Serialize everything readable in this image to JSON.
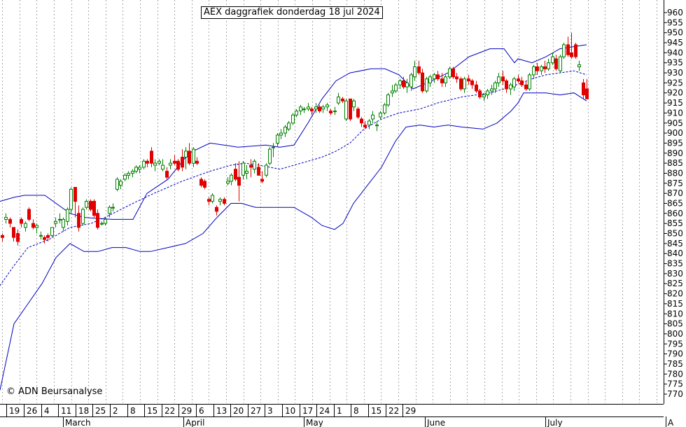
{
  "title": "AEX daggrafiek donderdag 18 jul 2024",
  "copyright": "© ADN Beursanalyse",
  "chart_data": {
    "type": "candlestick",
    "title": "AEX daggrafiek donderdag 18 jul 2024",
    "ylim": [
      765,
      963
    ],
    "yticks": [
      770,
      775,
      780,
      785,
      790,
      795,
      800,
      805,
      810,
      815,
      820,
      825,
      830,
      835,
      840,
      845,
      850,
      855,
      860,
      865,
      870,
      875,
      880,
      885,
      890,
      895,
      900,
      905,
      910,
      915,
      920,
      925,
      930,
      935,
      940,
      945,
      950,
      955,
      960
    ],
    "ytick_step": 5,
    "grid": "vertical dotted",
    "up_color": "#008000",
    "down_color": "#e00000",
    "band_color": "#0000c0",
    "x_day_labels": [
      "19",
      "26",
      "4",
      "11",
      "18",
      "25",
      "2",
      "8",
      "15",
      "22",
      "29",
      "6",
      "13",
      "20",
      "27",
      "3",
      "10",
      "17",
      "24",
      "1",
      "8",
      "15",
      "22",
      "29"
    ],
    "x_month_labels": [
      "March",
      "April",
      "May",
      "June",
      "July",
      "A"
    ],
    "month_label_slots": [
      3,
      38,
      73,
      108,
      143,
      178
    ],
    "candles": [
      {
        "o": 849,
        "h": 850,
        "l": 846,
        "c": 848
      },
      {
        "o": 857,
        "h": 860,
        "l": 855,
        "c": 858
      },
      {
        "o": 857,
        "h": 858,
        "l": 853,
        "c": 855
      },
      {
        "o": 853,
        "h": 853,
        "l": 846,
        "c": 848
      },
      {
        "o": 850,
        "h": 852,
        "l": 844,
        "c": 846
      },
      {
        "o": 857,
        "h": 858,
        "l": 853,
        "c": 855
      },
      {
        "o": 853,
        "h": 856,
        "l": 851,
        "c": 855
      },
      {
        "o": 862,
        "h": 863,
        "l": 856,
        "c": 857
      },
      {
        "o": 855,
        "h": 857,
        "l": 852,
        "c": 853
      },
      {
        "o": 853,
        "h": 855,
        "l": 850,
        "c": 854
      },
      {
        "o": 849,
        "h": 851,
        "l": 847,
        "c": 849
      },
      {
        "o": 848,
        "h": 849,
        "l": 845,
        "c": 847
      },
      {
        "o": 849,
        "h": 850,
        "l": 846,
        "c": 848
      },
      {
        "o": 849,
        "h": 853,
        "l": 848,
        "c": 853
      },
      {
        "o": 855,
        "h": 858,
        "l": 853,
        "c": 856
      },
      {
        "o": 857,
        "h": 860,
        "l": 855,
        "c": 857
      },
      {
        "o": 853,
        "h": 858,
        "l": 851,
        "c": 857
      },
      {
        "o": 856,
        "h": 863,
        "l": 854,
        "c": 862
      },
      {
        "o": 862,
        "h": 873,
        "l": 860,
        "c": 872
      },
      {
        "o": 873,
        "h": 873,
        "l": 858,
        "c": 866
      },
      {
        "o": 860,
        "h": 864,
        "l": 851,
        "c": 853
      },
      {
        "o": 855,
        "h": 863,
        "l": 854,
        "c": 862
      },
      {
        "o": 863,
        "h": 867,
        "l": 862,
        "c": 866
      },
      {
        "o": 866,
        "h": 867,
        "l": 861,
        "c": 862
      },
      {
        "o": 866,
        "h": 867,
        "l": 858,
        "c": 859
      },
      {
        "o": 860,
        "h": 862,
        "l": 852,
        "c": 853
      },
      {
        "o": 855,
        "h": 856,
        "l": 854,
        "c": 855
      },
      {
        "o": 855,
        "h": 858,
        "l": 854,
        "c": 857
      },
      {
        "o": 860,
        "h": 864,
        "l": 858,
        "c": 863
      },
      {
        "o": 863,
        "h": 865,
        "l": 861,
        "c": 863
      },
      {
        "o": 872,
        "h": 878,
        "l": 871,
        "c": 877
      },
      {
        "o": 874,
        "h": 877,
        "l": 872,
        "c": 876
      },
      {
        "o": 877,
        "h": 880,
        "l": 876,
        "c": 879
      },
      {
        "o": 879,
        "h": 881,
        "l": 877,
        "c": 880
      },
      {
        "o": 880,
        "h": 882,
        "l": 878,
        "c": 881
      },
      {
        "o": 881,
        "h": 884,
        "l": 880,
        "c": 883
      },
      {
        "o": 882,
        "h": 884,
        "l": 880,
        "c": 883
      },
      {
        "o": 883,
        "h": 887,
        "l": 882,
        "c": 886
      },
      {
        "o": 886,
        "h": 887,
        "l": 883,
        "c": 885
      },
      {
        "o": 891,
        "h": 893,
        "l": 883,
        "c": 885
      },
      {
        "o": 884,
        "h": 887,
        "l": 881,
        "c": 885
      },
      {
        "o": 885,
        "h": 887,
        "l": 884,
        "c": 886
      },
      {
        "o": 882,
        "h": 887,
        "l": 881,
        "c": 884
      },
      {
        "o": 881,
        "h": 883,
        "l": 877,
        "c": 878
      },
      {
        "o": 884,
        "h": 887,
        "l": 882,
        "c": 885
      },
      {
        "o": 886,
        "h": 889,
        "l": 884,
        "c": 885
      },
      {
        "o": 886,
        "h": 887,
        "l": 881,
        "c": 882
      },
      {
        "o": 888,
        "h": 892,
        "l": 881,
        "c": 883
      },
      {
        "o": 888,
        "h": 893,
        "l": 882,
        "c": 891
      },
      {
        "o": 891,
        "h": 895,
        "l": 884,
        "c": 885
      },
      {
        "o": 885,
        "h": 893,
        "l": 883,
        "c": 892
      },
      {
        "o": 886,
        "h": 888,
        "l": 884,
        "c": 885
      },
      {
        "o": 877,
        "h": 878,
        "l": 873,
        "c": 874
      },
      {
        "o": 876,
        "h": 877,
        "l": 872,
        "c": 873
      },
      {
        "o": 867,
        "h": 868,
        "l": 864,
        "c": 866
      },
      {
        "o": 866,
        "h": 870,
        "l": 865,
        "c": 869
      },
      {
        "o": 863,
        "h": 864,
        "l": 859,
        "c": 861
      },
      {
        "o": 866,
        "h": 868,
        "l": 864,
        "c": 867
      },
      {
        "o": 867,
        "h": 868,
        "l": 864,
        "c": 865
      },
      {
        "o": 875,
        "h": 878,
        "l": 874,
        "c": 876
      },
      {
        "o": 876,
        "h": 880,
        "l": 874,
        "c": 879
      },
      {
        "o": 882,
        "h": 885,
        "l": 876,
        "c": 877
      },
      {
        "o": 878,
        "h": 886,
        "l": 866,
        "c": 874
      },
      {
        "o": 879,
        "h": 886,
        "l": 877,
        "c": 885
      },
      {
        "o": 880,
        "h": 884,
        "l": 877,
        "c": 881
      },
      {
        "o": 884,
        "h": 887,
        "l": 878,
        "c": 883
      },
      {
        "o": 882,
        "h": 887,
        "l": 880,
        "c": 886
      },
      {
        "o": 883,
        "h": 885,
        "l": 879,
        "c": 879
      },
      {
        "o": 877,
        "h": 881,
        "l": 875,
        "c": 876
      },
      {
        "o": 879,
        "h": 885,
        "l": 878,
        "c": 884
      },
      {
        "o": 885,
        "h": 893,
        "l": 884,
        "c": 892
      },
      {
        "o": 893,
        "h": 895,
        "l": 888,
        "c": 893
      },
      {
        "o": 895,
        "h": 900,
        "l": 893,
        "c": 899
      },
      {
        "o": 899,
        "h": 902,
        "l": 897,
        "c": 900
      },
      {
        "o": 900,
        "h": 904,
        "l": 898,
        "c": 903
      },
      {
        "o": 902,
        "h": 906,
        "l": 901,
        "c": 905
      },
      {
        "o": 905,
        "h": 910,
        "l": 904,
        "c": 909
      },
      {
        "o": 909,
        "h": 912,
        "l": 908,
        "c": 911
      },
      {
        "o": 911,
        "h": 914,
        "l": 909,
        "c": 913
      },
      {
        "o": 912,
        "h": 913,
        "l": 910,
        "c": 912
      },
      {
        "o": 912,
        "h": 915,
        "l": 911,
        "c": 913
      },
      {
        "o": 912,
        "h": 913,
        "l": 909,
        "c": 911
      },
      {
        "o": 912,
        "h": 915,
        "l": 910,
        "c": 913
      },
      {
        "o": 913,
        "h": 914,
        "l": 910,
        "c": 911
      },
      {
        "o": 912,
        "h": 914,
        "l": 910,
        "c": 913
      },
      {
        "o": 913,
        "h": 915,
        "l": 911,
        "c": 914
      },
      {
        "o": 911,
        "h": 912,
        "l": 909,
        "c": 910
      },
      {
        "o": 911,
        "h": 913,
        "l": 909,
        "c": 911
      },
      {
        "o": 915,
        "h": 920,
        "l": 914,
        "c": 918
      },
      {
        "o": 917,
        "h": 918,
        "l": 915,
        "c": 916
      },
      {
        "o": 907,
        "h": 917,
        "l": 906,
        "c": 916
      },
      {
        "o": 917,
        "h": 917,
        "l": 906,
        "c": 907
      },
      {
        "o": 913,
        "h": 917,
        "l": 911,
        "c": 916
      },
      {
        "o": 912,
        "h": 913,
        "l": 907,
        "c": 908
      },
      {
        "o": 907,
        "h": 908,
        "l": 903,
        "c": 905
      },
      {
        "o": 904,
        "h": 906,
        "l": 902,
        "c": 903
      },
      {
        "o": 904,
        "h": 907,
        "l": 902,
        "c": 906
      },
      {
        "o": 907,
        "h": 911,
        "l": 905,
        "c": 909
      },
      {
        "o": 904,
        "h": 906,
        "l": 901,
        "c": 904
      },
      {
        "o": 908,
        "h": 911,
        "l": 907,
        "c": 910
      },
      {
        "o": 910,
        "h": 915,
        "l": 909,
        "c": 914
      },
      {
        "o": 914,
        "h": 920,
        "l": 913,
        "c": 919
      },
      {
        "o": 920,
        "h": 924,
        "l": 918,
        "c": 921
      },
      {
        "o": 921,
        "h": 925,
        "l": 920,
        "c": 924
      },
      {
        "o": 924,
        "h": 927,
        "l": 922,
        "c": 926
      },
      {
        "o": 926,
        "h": 928,
        "l": 922,
        "c": 923
      },
      {
        "o": 923,
        "h": 927,
        "l": 920,
        "c": 925
      },
      {
        "o": 923,
        "h": 930,
        "l": 921,
        "c": 929
      },
      {
        "o": 928,
        "h": 936,
        "l": 926,
        "c": 933
      },
      {
        "o": 933,
        "h": 936,
        "l": 929,
        "c": 930
      },
      {
        "o": 930,
        "h": 932,
        "l": 920,
        "c": 921
      },
      {
        "o": 921,
        "h": 928,
        "l": 920,
        "c": 927
      },
      {
        "o": 925,
        "h": 929,
        "l": 923,
        "c": 928
      },
      {
        "o": 927,
        "h": 930,
        "l": 925,
        "c": 929
      },
      {
        "o": 929,
        "h": 931,
        "l": 926,
        "c": 927
      },
      {
        "o": 927,
        "h": 930,
        "l": 923,
        "c": 925
      },
      {
        "o": 925,
        "h": 929,
        "l": 923,
        "c": 928
      },
      {
        "o": 928,
        "h": 933,
        "l": 927,
        "c": 932
      },
      {
        "o": 932,
        "h": 933,
        "l": 927,
        "c": 928
      },
      {
        "o": 928,
        "h": 930,
        "l": 925,
        "c": 927
      },
      {
        "o": 927,
        "h": 928,
        "l": 921,
        "c": 922
      },
      {
        "o": 922,
        "h": 928,
        "l": 920,
        "c": 927
      },
      {
        "o": 927,
        "h": 929,
        "l": 924,
        "c": 926
      },
      {
        "o": 926,
        "h": 927,
        "l": 922,
        "c": 924
      },
      {
        "o": 924,
        "h": 926,
        "l": 920,
        "c": 921
      },
      {
        "o": 921,
        "h": 922,
        "l": 917,
        "c": 918
      },
      {
        "o": 918,
        "h": 920,
        "l": 916,
        "c": 919
      },
      {
        "o": 919,
        "h": 922,
        "l": 917,
        "c": 921
      },
      {
        "o": 921,
        "h": 924,
        "l": 919,
        "c": 922
      },
      {
        "o": 922,
        "h": 926,
        "l": 920,
        "c": 925
      },
      {
        "o": 925,
        "h": 930,
        "l": 923,
        "c": 928
      },
      {
        "o": 928,
        "h": 931,
        "l": 924,
        "c": 926
      },
      {
        "o": 926,
        "h": 927,
        "l": 920,
        "c": 922
      },
      {
        "o": 922,
        "h": 925,
        "l": 919,
        "c": 924
      },
      {
        "o": 923,
        "h": 928,
        "l": 921,
        "c": 927
      },
      {
        "o": 927,
        "h": 929,
        "l": 925,
        "c": 926
      },
      {
        "o": 926,
        "h": 928,
        "l": 923,
        "c": 924
      },
      {
        "o": 924,
        "h": 926,
        "l": 921,
        "c": 922
      },
      {
        "o": 922,
        "h": 930,
        "l": 921,
        "c": 929
      },
      {
        "o": 929,
        "h": 934,
        "l": 927,
        "c": 933
      },
      {
        "o": 933,
        "h": 935,
        "l": 929,
        "c": 931
      },
      {
        "o": 931,
        "h": 934,
        "l": 929,
        "c": 933
      },
      {
        "o": 933,
        "h": 936,
        "l": 930,
        "c": 932
      },
      {
        "o": 932,
        "h": 937,
        "l": 931,
        "c": 935
      },
      {
        "o": 935,
        "h": 940,
        "l": 934,
        "c": 938
      },
      {
        "o": 937,
        "h": 939,
        "l": 931,
        "c": 932
      },
      {
        "o": 931,
        "h": 939,
        "l": 930,
        "c": 938
      },
      {
        "o": 938,
        "h": 945,
        "l": 937,
        "c": 944
      },
      {
        "o": 944,
        "h": 948,
        "l": 938,
        "c": 939
      },
      {
        "o": 940,
        "h": 950,
        "l": 937,
        "c": 938
      },
      {
        "o": 944,
        "h": 945,
        "l": 937,
        "c": 938
      },
      {
        "o": 933,
        "h": 936,
        "l": 931,
        "c": 934
      },
      {
        "o": 925,
        "h": 927,
        "l": 917,
        "c": 919
      },
      {
        "o": 922,
        "h": 927,
        "l": 917,
        "c": 917
      }
    ],
    "bollinger_upper": [
      [
        0,
        866
      ],
      [
        20,
        868
      ],
      [
        35,
        869
      ],
      [
        64,
        869
      ],
      [
        100,
        860
      ],
      [
        120,
        858
      ],
      [
        160,
        857
      ],
      [
        190,
        857
      ],
      [
        210,
        870
      ],
      [
        240,
        877
      ],
      [
        270,
        890
      ],
      [
        300,
        895
      ],
      [
        320,
        894
      ],
      [
        340,
        893
      ],
      [
        380,
        894
      ],
      [
        400,
        893
      ],
      [
        420,
        894
      ],
      [
        440,
        905
      ],
      [
        460,
        917
      ],
      [
        480,
        926
      ],
      [
        500,
        930
      ],
      [
        530,
        932
      ],
      [
        550,
        932
      ],
      [
        570,
        929
      ],
      [
        590,
        922
      ],
      [
        610,
        925
      ],
      [
        640,
        930
      ],
      [
        670,
        938
      ],
      [
        700,
        942
      ],
      [
        720,
        942
      ],
      [
        735,
        935
      ],
      [
        740,
        937
      ],
      [
        760,
        935
      ],
      [
        780,
        938
      ],
      [
        800,
        942
      ],
      [
        838,
        944
      ]
    ],
    "bollinger_lower": [
      [
        0,
        772
      ],
      [
        20,
        805
      ],
      [
        40,
        815
      ],
      [
        60,
        825
      ],
      [
        80,
        838
      ],
      [
        100,
        845
      ],
      [
        120,
        841
      ],
      [
        140,
        841
      ],
      [
        160,
        843
      ],
      [
        180,
        843
      ],
      [
        200,
        841
      ],
      [
        215,
        841
      ],
      [
        240,
        843
      ],
      [
        265,
        845
      ],
      [
        290,
        850
      ],
      [
        310,
        858
      ],
      [
        330,
        865
      ],
      [
        345,
        865
      ],
      [
        365,
        863
      ],
      [
        390,
        863
      ],
      [
        420,
        863
      ],
      [
        445,
        858
      ],
      [
        460,
        854
      ],
      [
        478,
        852
      ],
      [
        490,
        855
      ],
      [
        505,
        865
      ],
      [
        525,
        874
      ],
      [
        545,
        883
      ],
      [
        565,
        896
      ],
      [
        580,
        903
      ],
      [
        600,
        904
      ],
      [
        620,
        903
      ],
      [
        640,
        904
      ],
      [
        660,
        903
      ],
      [
        690,
        902
      ],
      [
        710,
        905
      ],
      [
        730,
        911
      ],
      [
        740,
        915
      ],
      [
        748,
        920
      ],
      [
        760,
        920
      ],
      [
        780,
        920
      ],
      [
        800,
        919
      ],
      [
        820,
        920
      ],
      [
        838,
        916
      ]
    ],
    "bollinger_middle": [
      [
        0,
        824
      ],
      [
        20,
        834
      ],
      [
        40,
        843
      ],
      [
        70,
        847
      ],
      [
        100,
        853
      ],
      [
        130,
        855
      ],
      [
        150,
        858
      ],
      [
        190,
        865
      ],
      [
        220,
        870
      ],
      [
        260,
        876
      ],
      [
        300,
        881
      ],
      [
        330,
        884
      ],
      [
        350,
        885
      ],
      [
        370,
        884
      ],
      [
        400,
        882
      ],
      [
        420,
        884
      ],
      [
        440,
        886
      ],
      [
        460,
        888
      ],
      [
        480,
        891
      ],
      [
        500,
        895
      ],
      [
        520,
        902
      ],
      [
        545,
        907
      ],
      [
        570,
        910
      ],
      [
        600,
        912
      ],
      [
        625,
        915
      ],
      [
        660,
        918
      ],
      [
        700,
        920
      ],
      [
        730,
        923
      ],
      [
        745,
        925
      ],
      [
        760,
        927
      ],
      [
        780,
        929
      ],
      [
        800,
        930
      ],
      [
        820,
        931
      ],
      [
        838,
        929
      ]
    ]
  }
}
